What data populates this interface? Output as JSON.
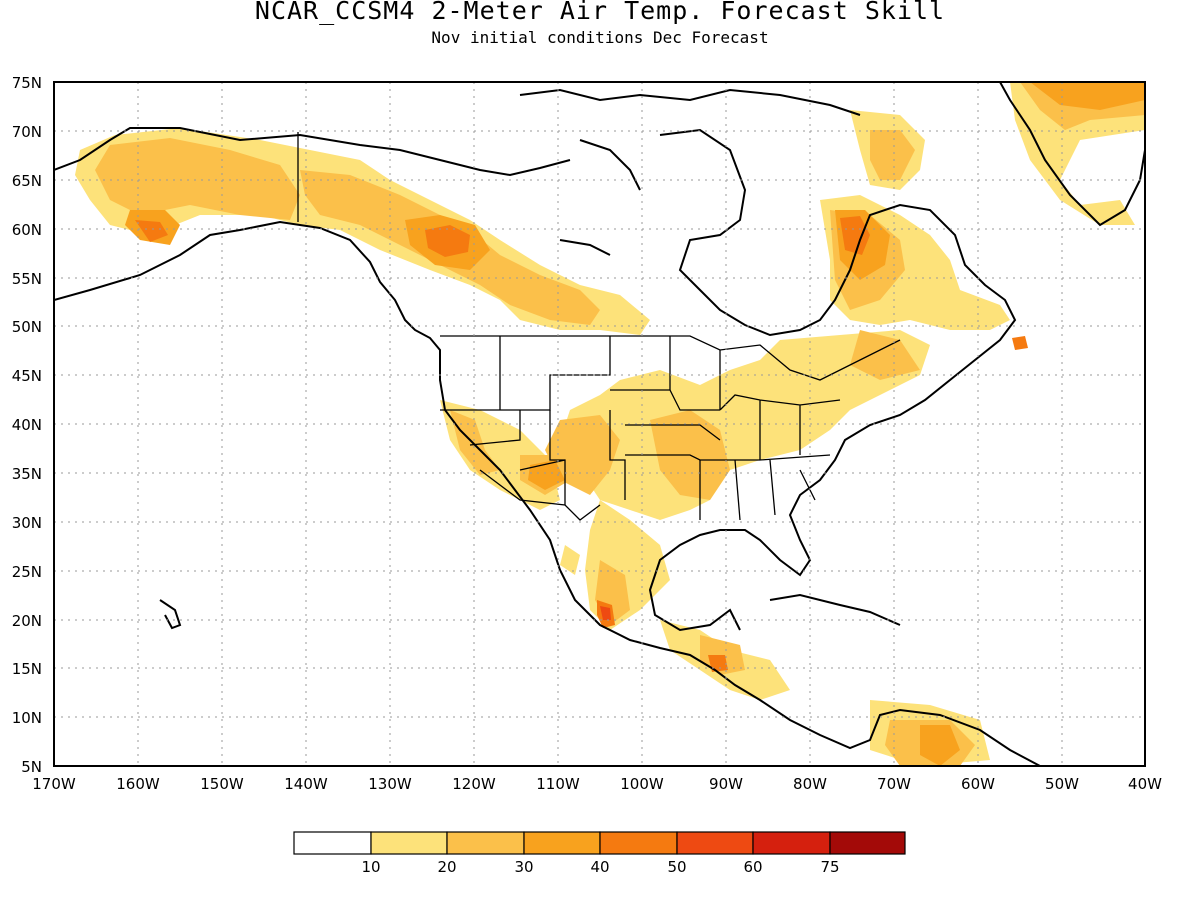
{
  "title": "NCAR_CCSM4 2-Meter Air Temp. Forecast Skill",
  "subtitle": "Nov initial conditions  Dec Forecast",
  "map": {
    "lon_range": [
      -170,
      -40
    ],
    "lat_range": [
      5,
      75
    ],
    "lat_labels": [
      "75N",
      "70N",
      "65N",
      "60N",
      "55N",
      "50N",
      "45N",
      "40N",
      "35N",
      "30N",
      "25N",
      "20N",
      "15N",
      "10N",
      "5N"
    ],
    "lon_labels": [
      "170W",
      "160W",
      "150W",
      "140W",
      "130W",
      "120W",
      "110W",
      "100W",
      "90W",
      "80W",
      "70W",
      "60W",
      "50W",
      "40W"
    ],
    "gridlines": "dotted"
  },
  "colorbar": {
    "colors": [
      "#ffffff",
      "#fde27a",
      "#fbc04a",
      "#f8a21e",
      "#f57a10",
      "#ee4a12",
      "#d5200e",
      "#a30a08"
    ],
    "labels": [
      "10",
      "20",
      "30",
      "40",
      "50",
      "60",
      "75"
    ]
  }
}
